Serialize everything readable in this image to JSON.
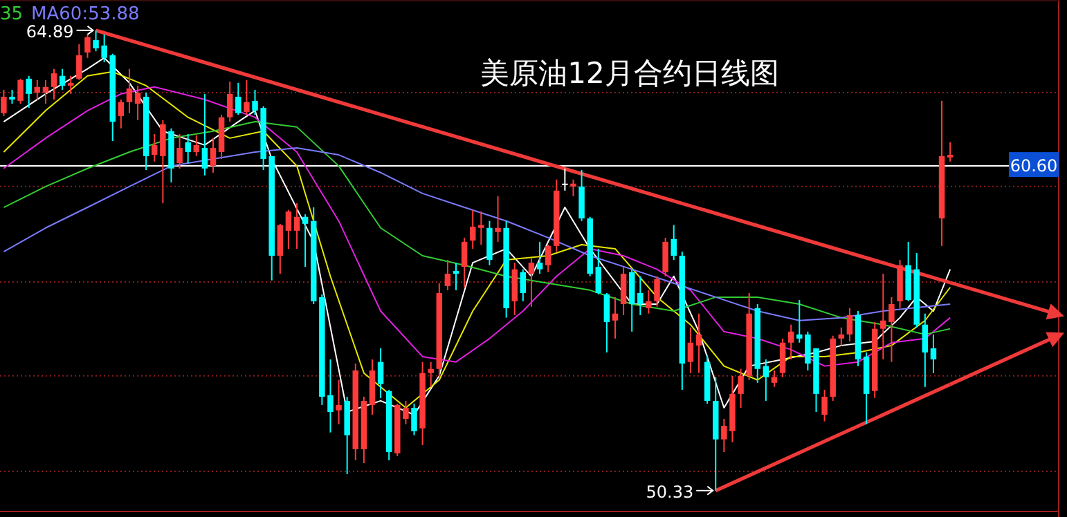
{
  "chart_data": {
    "type": "candlestick",
    "title": "美原油12月合约日线图",
    "categories": [
      null,
      null,
      null,
      null,
      null,
      null,
      null,
      null,
      null,
      null,
      null,
      null,
      null,
      null,
      null,
      null,
      null,
      null,
      null,
      null,
      null,
      null,
      null,
      null,
      null,
      null,
      null,
      null,
      null,
      null,
      null,
      null,
      null,
      null,
      null,
      null,
      null,
      null,
      null,
      null,
      null,
      null,
      null,
      null,
      null,
      null,
      null,
      null,
      null,
      null,
      null,
      null,
      null,
      null,
      null,
      null,
      null,
      null,
      null,
      null,
      null,
      null,
      null,
      null,
      null,
      null,
      null,
      null,
      null,
      null,
      null,
      null,
      null,
      null,
      null,
      null,
      null,
      null,
      null,
      null,
      null,
      null,
      null,
      null,
      null,
      null,
      null,
      null,
      null,
      null,
      null,
      null,
      null,
      null,
      null,
      null,
      null,
      null,
      null,
      null,
      null,
      null,
      null,
      null,
      null,
      null,
      null,
      null,
      null,
      null,
      null,
      null,
      null,
      null
    ],
    "ohlc": [
      [
        62.27,
        63.01,
        62.18,
        62.79
      ],
      [
        62.79,
        63.01,
        62.57,
        62.7
      ],
      [
        62.66,
        63.36,
        62.57,
        63.32
      ],
      [
        63.36,
        63.45,
        62.44,
        62.88
      ],
      [
        62.92,
        63.32,
        62.7,
        63.1
      ],
      [
        62.92,
        63.32,
        62.57,
        63.1
      ],
      [
        63.1,
        63.67,
        62.7,
        63.53
      ],
      [
        63.45,
        63.67,
        63.01,
        63.14
      ],
      [
        63.14,
        63.45,
        62.88,
        63.23
      ],
      [
        63.36,
        64.45,
        63.32,
        64.1
      ],
      [
        64.19,
        64.76,
        64.02,
        64.67
      ],
      [
        64.58,
        64.89,
        64.23,
        64.32
      ],
      [
        64.41,
        64.76,
        63.88,
        64.02
      ],
      [
        64.1,
        64.15,
        61.39,
        62.0
      ],
      [
        62.18,
        62.7,
        61.79,
        62.62
      ],
      [
        62.62,
        63.67,
        62.27,
        63.05
      ],
      [
        62.57,
        63.14,
        62.05,
        62.92
      ],
      [
        62.79,
        62.92,
        60.47,
        60.91
      ],
      [
        60.95,
        61.61,
        60.74,
        61.26
      ],
      [
        60.91,
        62.05,
        59.42,
        61.92
      ],
      [
        61.7,
        61.79,
        60.08,
        60.52
      ],
      [
        60.69,
        61.61,
        60.52,
        61.17
      ],
      [
        61.35,
        61.61,
        60.69,
        61.04
      ],
      [
        61.04,
        61.57,
        60.91,
        61.26
      ],
      [
        61.17,
        62.88,
        60.3,
        60.52
      ],
      [
        60.6,
        61.48,
        60.39,
        61.17
      ],
      [
        61.04,
        62.22,
        60.82,
        62.14
      ],
      [
        62.14,
        63.27,
        62.0,
        62.88
      ],
      [
        62.79,
        63.23,
        62.22,
        62.27
      ],
      [
        62.31,
        63.32,
        62.22,
        62.62
      ],
      [
        62.66,
        63.01,
        62.22,
        62.35
      ],
      [
        62.44,
        62.49,
        60.47,
        60.82
      ],
      [
        60.91,
        60.91,
        56.98,
        57.76
      ],
      [
        57.76,
        58.77,
        57.19,
        58.73
      ],
      [
        58.55,
        59.21,
        57.98,
        59.16
      ],
      [
        58.55,
        59.42,
        57.98,
        58.99
      ],
      [
        58.99,
        59.07,
        57.41,
        58.77
      ],
      [
        58.86,
        59.29,
        56.23,
        56.32
      ],
      [
        56.45,
        56.54,
        53.04,
        53.3
      ],
      [
        53.35,
        54.48,
        52.17,
        52.82
      ],
      [
        52.87,
        53.83,
        52.43,
        53.04
      ],
      [
        53.17,
        53.3,
        50.85,
        52.08
      ],
      [
        51.64,
        54.35,
        51.29,
        54.13
      ],
      [
        51.64,
        53.3,
        51.2,
        53.17
      ],
      [
        53.04,
        54.48,
        52.73,
        54.13
      ],
      [
        54.4,
        54.83,
        53.26,
        53.7
      ],
      [
        53.48,
        53.52,
        51.29,
        51.55
      ],
      [
        51.51,
        53.08,
        51.42,
        53.04
      ],
      [
        52.6,
        53.17,
        52.43,
        52.95
      ],
      [
        52.95,
        53.08,
        52.08,
        52.21
      ],
      [
        52.3,
        54.4,
        51.77,
        54.05
      ],
      [
        54.05,
        54.4,
        53.61,
        54.18
      ],
      [
        54.18,
        56.89,
        53.92,
        56.58
      ],
      [
        56.8,
        57.63,
        56.67,
        57.19
      ],
      [
        57.28,
        57.54,
        56.67,
        57.19
      ],
      [
        57.41,
        58.33,
        56.76,
        58.2
      ],
      [
        58.24,
        59.21,
        57.98,
        58.68
      ],
      [
        58.64,
        59.16,
        58.11,
        58.73
      ],
      [
        58.64,
        58.86,
        57.46,
        57.63
      ],
      [
        58.51,
        59.64,
        58.2,
        58.64
      ],
      [
        58.64,
        58.86,
        55.8,
        56.1
      ],
      [
        56.32,
        57.54,
        55.88,
        57.33
      ],
      [
        57.24,
        57.33,
        56.32,
        56.58
      ],
      [
        57.19,
        57.68,
        56.15,
        57.54
      ],
      [
        57.54,
        58.2,
        57.19,
        57.33
      ],
      [
        57.46,
        58.11,
        57.24,
        58.07
      ],
      [
        58.07,
        60.17,
        57.89,
        59.82
      ],
      [
        60.04,
        60.52,
        59.82,
        60.04
      ],
      [
        59.95,
        60.17,
        59.64,
        60.04
      ],
      [
        59.95,
        60.47,
        58.86,
        58.94
      ],
      [
        58.94,
        58.99,
        57.11,
        57.19
      ],
      [
        57.41,
        57.98,
        56.54,
        56.58
      ],
      [
        56.54,
        56.58,
        54.7,
        55.66
      ],
      [
        55.71,
        56.45,
        55.14,
        55.93
      ],
      [
        56.23,
        57.41,
        55.88,
        57.19
      ],
      [
        57.24,
        57.33,
        55.36,
        56.23
      ],
      [
        56.58,
        57.11,
        55.88,
        56.23
      ],
      [
        56.1,
        56.67,
        55.93,
        56.32
      ],
      [
        56.32,
        57.11,
        56.15,
        57.02
      ],
      [
        57.24,
        58.33,
        57.11,
        58.2
      ],
      [
        58.29,
        58.73,
        57.63,
        57.76
      ],
      [
        57.76,
        57.89,
        53.52,
        54.35
      ],
      [
        54.4,
        55.49,
        54.05,
        55.01
      ],
      [
        54.92,
        55.93,
        54.05,
        55.27
      ],
      [
        54.4,
        54.62,
        53.08,
        53.17
      ],
      [
        53.17,
        53.92,
        50.33,
        51.95
      ],
      [
        51.95,
        52.6,
        51.55,
        52.38
      ],
      [
        52.21,
        53.96,
        51.86,
        53.39
      ],
      [
        53.39,
        54.18,
        52.95,
        53.96
      ],
      [
        53.96,
        56.58,
        53.83,
        55.93
      ],
      [
        56.1,
        56.23,
        53.74,
        54.18
      ],
      [
        54.27,
        54.48,
        53.17,
        53.92
      ],
      [
        53.74,
        54.13,
        53.61,
        53.92
      ],
      [
        54.05,
        55.14,
        53.92,
        55.01
      ],
      [
        55.01,
        55.58,
        54.48,
        55.36
      ],
      [
        55.27,
        56.36,
        55.01,
        55.14
      ],
      [
        55.27,
        55.36,
        54.13,
        54.35
      ],
      [
        54.83,
        54.83,
        52.82,
        53.39
      ],
      [
        52.73,
        53.52,
        52.52,
        53.3
      ],
      [
        53.3,
        55.23,
        53.17,
        55.14
      ],
      [
        55.14,
        55.49,
        54.92,
        55.27
      ],
      [
        55.27,
        56.1,
        55.05,
        55.88
      ],
      [
        55.88,
        56.01,
        54.27,
        54.48
      ],
      [
        54.57,
        54.7,
        52.43,
        53.39
      ],
      [
        53.48,
        55.66,
        53.26,
        55.45
      ],
      [
        55.45,
        57.19,
        54.48,
        55.71
      ],
      [
        55.66,
        56.45,
        54.4,
        56.23
      ],
      [
        56.32,
        57.63,
        56.1,
        57.46
      ],
      [
        57.46,
        58.2,
        56.32,
        56.36
      ],
      [
        57.33,
        57.85,
        55.49,
        55.58
      ],
      [
        55.58,
        55.93,
        53.61,
        54.7
      ],
      [
        54.83,
        55.27,
        54.05,
        54.48
      ],
      [
        58.94,
        62.66,
        58.07,
        60.91
      ],
      [
        60.87,
        61.35,
        60.74,
        60.95
      ]
    ],
    "colors": [
      "#ff3b3b",
      "#00ffff",
      "#ff3b3b",
      "#00ffff",
      "#ff3b3b",
      "#ff3b3b",
      "#ff3b3b",
      "#00ffff",
      "#ff3b3b",
      "#ff3b3b",
      "#ff3b3b",
      "#00ffff",
      "#00ffff",
      "#00ffff",
      "#ff3b3b",
      "#ff3b3b",
      "#ff3b3b",
      "#00ffff",
      "#ff3b3b",
      "#ff3b3b",
      "#00ffff",
      "#ff3b3b",
      "#00ffff",
      "#ff3b3b",
      "#00ffff",
      "#ff3b3b",
      "#ff3b3b",
      "#ff3b3b",
      "#00ffff",
      "#ff3b3b",
      "#00ffff",
      "#00ffff",
      "#00ffff",
      "#ff3b3b",
      "#ff3b3b",
      "#ff3b3b",
      "#00ffff",
      "#00ffff",
      "#00ffff",
      "#00ffff",
      "#ff3b3b",
      "#00ffff",
      "#ff3b3b",
      "#ff3b3b",
      "#ff3b3b",
      "#00ffff",
      "#00ffff",
      "#ff3b3b",
      "#ff3b3b",
      "#00ffff",
      "#ff3b3b",
      "#ff3b3b",
      "#ff3b3b",
      "#ff3b3b",
      "#00ffff",
      "#ff3b3b",
      "#ff3b3b",
      "#ff3b3b",
      "#00ffff",
      "#ff3b3b",
      "#00ffff",
      "#ff3b3b",
      "#00ffff",
      "#ff3b3b",
      "#00ffff",
      "#ff3b3b",
      "#ff3b3b",
      "#ffffff",
      "#ff3b3b",
      "#00ffff",
      "#00ffff",
      "#00ffff",
      "#00ffff",
      "#ff3b3b",
      "#ff3b3b",
      "#00ffff",
      "#00ffff",
      "#ff3b3b",
      "#ff3b3b",
      "#ff3b3b",
      "#00ffff",
      "#00ffff",
      "#ff3b3b",
      "#ff3b3b",
      "#00ffff",
      "#00ffff",
      "#ff3b3b",
      "#ff3b3b",
      "#ff3b3b",
      "#ff3b3b",
      "#00ffff",
      "#00ffff",
      "#ff3b3b",
      "#ff3b3b",
      "#ff3b3b",
      "#00ffff",
      "#00ffff",
      "#00ffff",
      "#ff3b3b",
      "#ff3b3b",
      "#ff3b3b",
      "#ff3b3b",
      "#00ffff",
      "#00ffff",
      "#ff3b3b",
      "#ff3b3b",
      "#ff3b3b",
      "#ff3b3b",
      "#00ffff",
      "#00ffff",
      "#00ffff",
      "#00ffff",
      "#ff3b3b",
      "#ff3b3b"
    ],
    "series": [
      {
        "type": "line",
        "color": "#ffffff",
        "values": [
          62.0,
          null,
          null,
          null,
          null,
          62.88,
          null,
          null,
          null,
          null,
          63.67,
          null,
          64.02,
          null,
          null,
          63.23,
          null,
          null,
          null,
          61.7,
          null,
          null,
          null,
          null,
          61.26,
          null,
          null,
          null,
          62.0,
          null,
          62.35,
          null,
          60.82,
          null,
          null,
          null,
          null,
          58.2,
          null,
          null,
          null,
          52.82,
          null,
          null,
          null,
          53.17,
          null,
          null,
          null,
          52.73,
          null,
          null,
          53.96,
          null,
          null,
          null,
          57.54,
          null,
          null,
          null,
          57.98,
          null,
          null,
          57.11,
          null,
          null,
          null,
          59.29,
          null,
          null,
          57.98,
          null,
          null,
          null,
          null,
          56.23,
          null,
          null,
          56.23,
          null,
          57.11,
          null,
          null,
          55.36,
          null,
          null,
          52.95,
          null,
          null,
          54.27,
          null,
          null,
          null,
          54.48,
          null,
          null,
          null,
          54.7,
          null,
          null,
          54.92,
          null,
          null,
          null,
          55.05,
          null,
          null,
          55.8,
          null,
          56.45,
          null,
          56.01,
          null,
          57.33
        ]
      },
      {
        "type": "line",
        "color": "#e6e600",
        "values": [
          61.04,
          null,
          null,
          null,
          null,
          62.35,
          null,
          null,
          null,
          null,
          63.45,
          null,
          null,
          63.58,
          null,
          null,
          null,
          63.14,
          null,
          null,
          null,
          null,
          62.14,
          null,
          null,
          null,
          null,
          61.48,
          null,
          null,
          null,
          61.7,
          null,
          null,
          null,
          60.6,
          null,
          null,
          null,
          57.11,
          null,
          null,
          null,
          54.05,
          null,
          null,
          null,
          null,
          52.95,
          null,
          null,
          null,
          53.83,
          null,
          null,
          null,
          56.01,
          null,
          null,
          null,
          57.63,
          null,
          null,
          null,
          null,
          57.76,
          null,
          null,
          null,
          58.11,
          null,
          null,
          null,
          57.98,
          null,
          null,
          null,
          null,
          56.45,
          null,
          null,
          null,
          55.58,
          null,
          null,
          null,
          54.27,
          null,
          null,
          null,
          53.83,
          null,
          null,
          null,
          54.57,
          null,
          null,
          null,
          54.57,
          null,
          null,
          null,
          54.7,
          null,
          null,
          null,
          54.92,
          null,
          null,
          null,
          55.71,
          null,
          null,
          56.76
        ]
      },
      {
        "type": "line",
        "color": "#e020e0",
        "values": [
          60.52,
          null,
          null,
          null,
          null,
          61.48,
          null,
          null,
          null,
          null,
          62.35,
          null,
          null,
          null,
          62.88,
          null,
          null,
          null,
          63.1,
          null,
          null,
          null,
          null,
          null,
          62.7,
          null,
          null,
          null,
          null,
          null,
          62.14,
          null,
          null,
          null,
          null,
          61.04,
          null,
          null,
          null,
          null,
          58.86,
          null,
          null,
          null,
          null,
          56.01,
          null,
          null,
          null,
          null,
          54.57,
          null,
          null,
          null,
          54.4,
          null,
          null,
          null,
          55.14,
          null,
          null,
          null,
          56.01,
          null,
          null,
          null,
          57.11,
          null,
          null,
          null,
          57.98,
          null,
          null,
          null,
          57.76,
          null,
          null,
          null,
          57.33,
          null,
          null,
          null,
          56.67,
          null,
          null,
          null,
          55.36,
          null,
          null,
          null,
          55.14,
          null,
          null,
          null,
          54.79,
          null,
          null,
          null,
          54.27,
          null,
          null,
          null,
          54.4,
          null,
          null,
          null,
          55.01,
          null,
          null,
          null,
          55.14,
          null,
          null,
          55.8
        ]
      },
      {
        "type": "line",
        "color": "#33cc33",
        "values": [
          59.29,
          null,
          null,
          null,
          null,
          59.95,
          null,
          null,
          null,
          null,
          60.52,
          null,
          null,
          null,
          null,
          61.04,
          null,
          null,
          null,
          null,
          61.48,
          null,
          null,
          null,
          null,
          61.7,
          null,
          null,
          null,
          null,
          62.0,
          null,
          null,
          null,
          null,
          61.83,
          null,
          null,
          null,
          null,
          60.6,
          null,
          null,
          null,
          null,
          58.64,
          null,
          null,
          null,
          null,
          57.76,
          null,
          null,
          null,
          null,
          57.46,
          null,
          null,
          null,
          null,
          57.11,
          null,
          null,
          null,
          null,
          56.89,
          null,
          null,
          null,
          null,
          56.67,
          null,
          null,
          null,
          null,
          56.23,
          null,
          null,
          null,
          null,
          56.01,
          null,
          null,
          null,
          null,
          56.45,
          null,
          null,
          null,
          null,
          56.45,
          null,
          null,
          null,
          null,
          56.23,
          null,
          null,
          null,
          null,
          55.8,
          null,
          null,
          null,
          null,
          55.58,
          null,
          null,
          null,
          null,
          55.27,
          null,
          null,
          55.45
        ]
      },
      {
        "type": "line",
        "color": "#f03a3a",
        "values": [
          null,
          null,
          null,
          null,
          null,
          null,
          null,
          null,
          null,
          null,
          null,
          64.89,
          null,
          null,
          null,
          null,
          null,
          null,
          null,
          null,
          null,
          null,
          null,
          null,
          null,
          null,
          null,
          null,
          null,
          null,
          null,
          null,
          null,
          null,
          null,
          null,
          null,
          null,
          null,
          null,
          null,
          null,
          null,
          null,
          null,
          null,
          null,
          null,
          null,
          null,
          null,
          null,
          null,
          null,
          null,
          null,
          null,
          null,
          null,
          null,
          null,
          null,
          null,
          null,
          null,
          null,
          null,
          null,
          null,
          null,
          null,
          null,
          null,
          null,
          null,
          null,
          null,
          null,
          null,
          null,
          null,
          null,
          null,
          null,
          null,
          null,
          null,
          null,
          null,
          null,
          null,
          null,
          null,
          null,
          null,
          null,
          null,
          null,
          null,
          null,
          null,
          null,
          null,
          null,
          null,
          null,
          null,
          null,
          null,
          null,
          null,
          null,
          null,
          56.91
        ]
      },
      {
        "type": "line",
        "color": "#f03a3a",
        "values": [
          null,
          null,
          null,
          null,
          null,
          null,
          null,
          null,
          null,
          null,
          null,
          null,
          null,
          null,
          null,
          null,
          null,
          null,
          null,
          null,
          null,
          null,
          null,
          null,
          null,
          null,
          null,
          null,
          null,
          null,
          null,
          null,
          null,
          null,
          null,
          null,
          null,
          null,
          null,
          null,
          null,
          null,
          null,
          null,
          null,
          null,
          null,
          null,
          null,
          null,
          null,
          null,
          null,
          null,
          null,
          null,
          null,
          null,
          null,
          null,
          null,
          null,
          null,
          null,
          null,
          null,
          null,
          null,
          null,
          null,
          null,
          null,
          null,
          null,
          null,
          null,
          null,
          null,
          null,
          null,
          null,
          null,
          null,
          null,
          null,
          50.33,
          null,
          null,
          null,
          null,
          null,
          null,
          null,
          null,
          null,
          null,
          null,
          null,
          null,
          null,
          null,
          null,
          null,
          null,
          null,
          null,
          null,
          null,
          null,
          null,
          null,
          null,
          null,
          53.69
        ]
      },
      {
        "type": "line",
        "name": "MA60:53.88",
        "color": "#7b7bff",
        "values": [
          57.89,
          null,
          null,
          null,
          null,
          58.64,
          null,
          null,
          null,
          null,
          59.29,
          null,
          null,
          null,
          null,
          59.95,
          null,
          null,
          null,
          null,
          60.6,
          null,
          null,
          null,
          null,
          60.82,
          null,
          null,
          null,
          null,
          61.04,
          null,
          null,
          null,
          null,
          61.17,
          null,
          null,
          null,
          null,
          60.95,
          null,
          null,
          null,
          null,
          60.39,
          null,
          null,
          null,
          null,
          59.73,
          null,
          null,
          null,
          null,
          59.29,
          null,
          null,
          null,
          null,
          58.86,
          null,
          null,
          null,
          null,
          58.33,
          null,
          null,
          null,
          null,
          57.76,
          null,
          null,
          null,
          null,
          57.33,
          null,
          null,
          null,
          null,
          56.89,
          null,
          null,
          null,
          null,
          56.45,
          null,
          null,
          null,
          null,
          56.01,
          null,
          null,
          null,
          null,
          55.71,
          null,
          null,
          null,
          null,
          55.8,
          null,
          null,
          null,
          null,
          56.01,
          null,
          null,
          null,
          null,
          56.15,
          null,
          null,
          56.23
        ]
      }
    ],
    "annotations": [
      "35",
      "64.89",
      "50.33"
    ],
    "ref_lines": [
      {
        "axis": "y",
        "value": 60.6,
        "label": "60.60",
        "color": "#ffffff"
      }
    ],
    "ylim": [
      49.67,
      65.85
    ],
    "yticks": [
      {
        "value": 62.92,
        "label": null
      },
      {
        "value": 59.95,
        "label": null
      },
      {
        "value": 56.93,
        "label": null
      },
      {
        "value": 53.96,
        "label": null
      },
      {
        "value": 50.94,
        "label": null
      }
    ],
    "grid": "y"
  }
}
